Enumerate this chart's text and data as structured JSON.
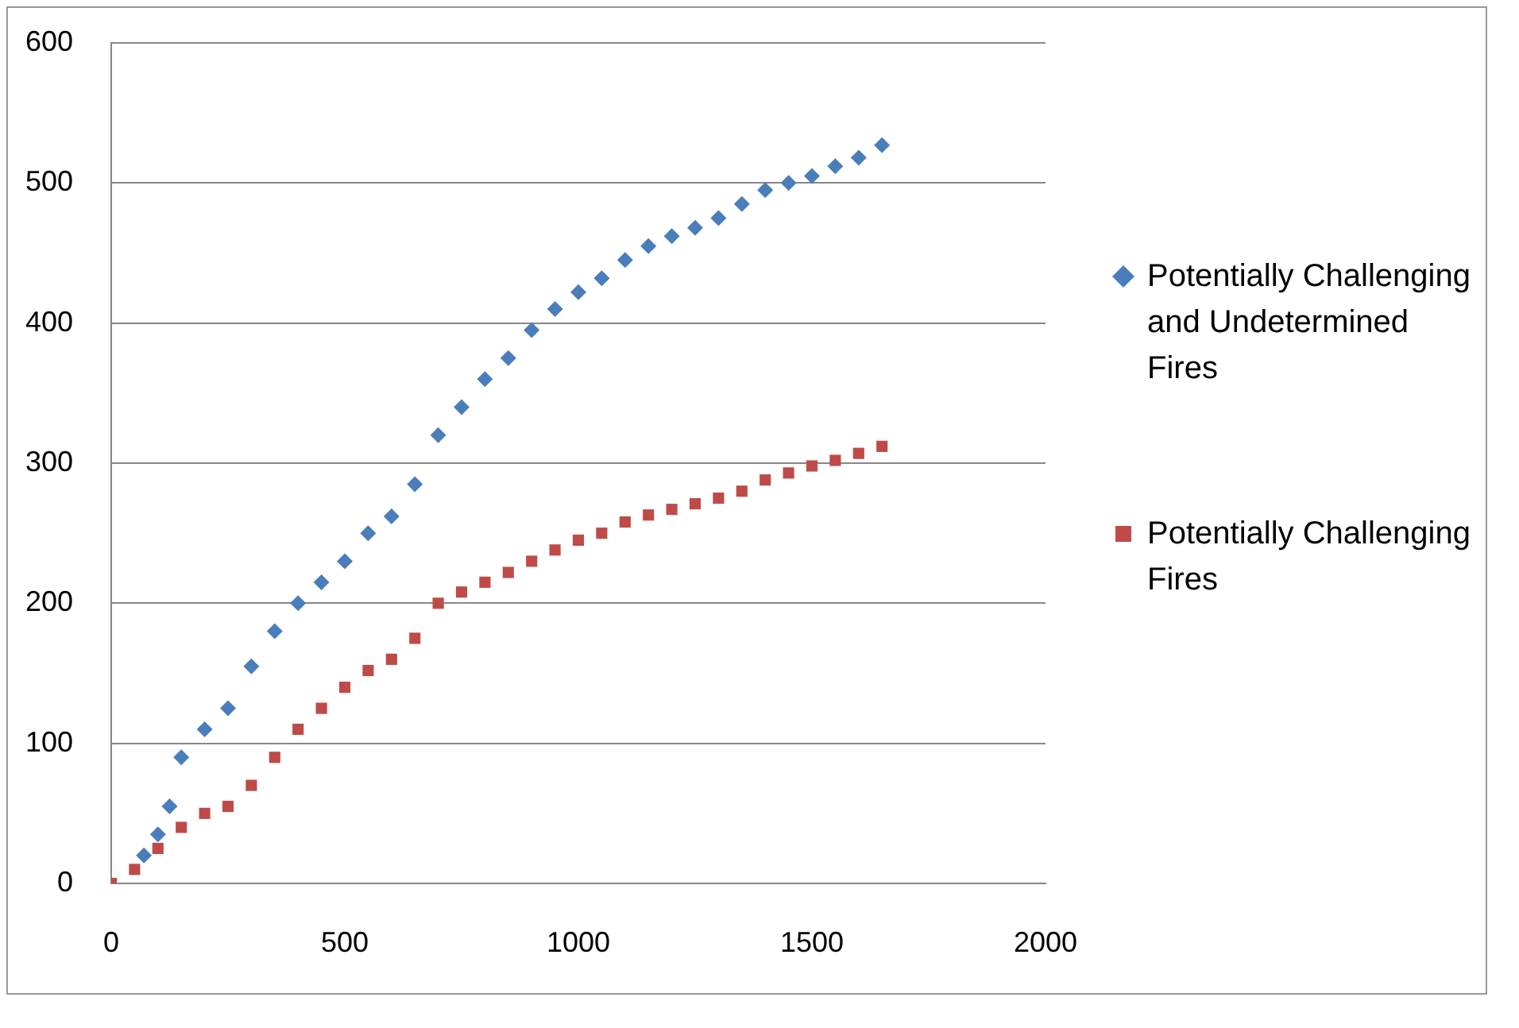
{
  "chart_data": {
    "type": "scatter",
    "legend": "right",
    "grid": "y",
    "xlim": [
      0,
      2000
    ],
    "xticks": [
      0,
      500,
      1000,
      1500,
      2000
    ],
    "ylim": [
      0,
      600
    ],
    "yticks": [
      0,
      100,
      200,
      300,
      400,
      500,
      600
    ],
    "series": [
      {
        "name": "Potentially Challenging and Undetermined Fires",
        "color": "#4a7ebb",
        "marker": "diamond",
        "x": [
          70,
          100,
          125,
          150,
          200,
          250,
          300,
          350,
          400,
          450,
          500,
          550,
          600,
          650,
          700,
          750,
          800,
          850,
          900,
          950,
          1000,
          1050,
          1100,
          1150,
          1200,
          1250,
          1300,
          1350,
          1400,
          1450,
          1500,
          1550,
          1600,
          1650
        ],
        "values": [
          20,
          35,
          55,
          90,
          110,
          125,
          155,
          180,
          200,
          215,
          230,
          250,
          262,
          285,
          320,
          340,
          360,
          375,
          395,
          410,
          422,
          432,
          445,
          455,
          462,
          468,
          475,
          485,
          495,
          500,
          505,
          512,
          518,
          527
        ]
      },
      {
        "name": "Potentially Challenging Fires",
        "color": "#be4b48",
        "marker": "square",
        "x": [
          0,
          50,
          100,
          150,
          200,
          250,
          300,
          350,
          400,
          450,
          500,
          550,
          600,
          650,
          700,
          750,
          800,
          850,
          900,
          950,
          1000,
          1050,
          1100,
          1150,
          1200,
          1250,
          1300,
          1350,
          1400,
          1450,
          1500,
          1550,
          1600,
          1650
        ],
        "values": [
          0,
          10,
          25,
          40,
          50,
          55,
          70,
          90,
          110,
          125,
          140,
          152,
          160,
          175,
          200,
          208,
          215,
          222,
          230,
          238,
          245,
          250,
          258,
          263,
          267,
          271,
          275,
          280,
          288,
          293,
          298,
          302,
          307,
          312
        ]
      }
    ]
  }
}
